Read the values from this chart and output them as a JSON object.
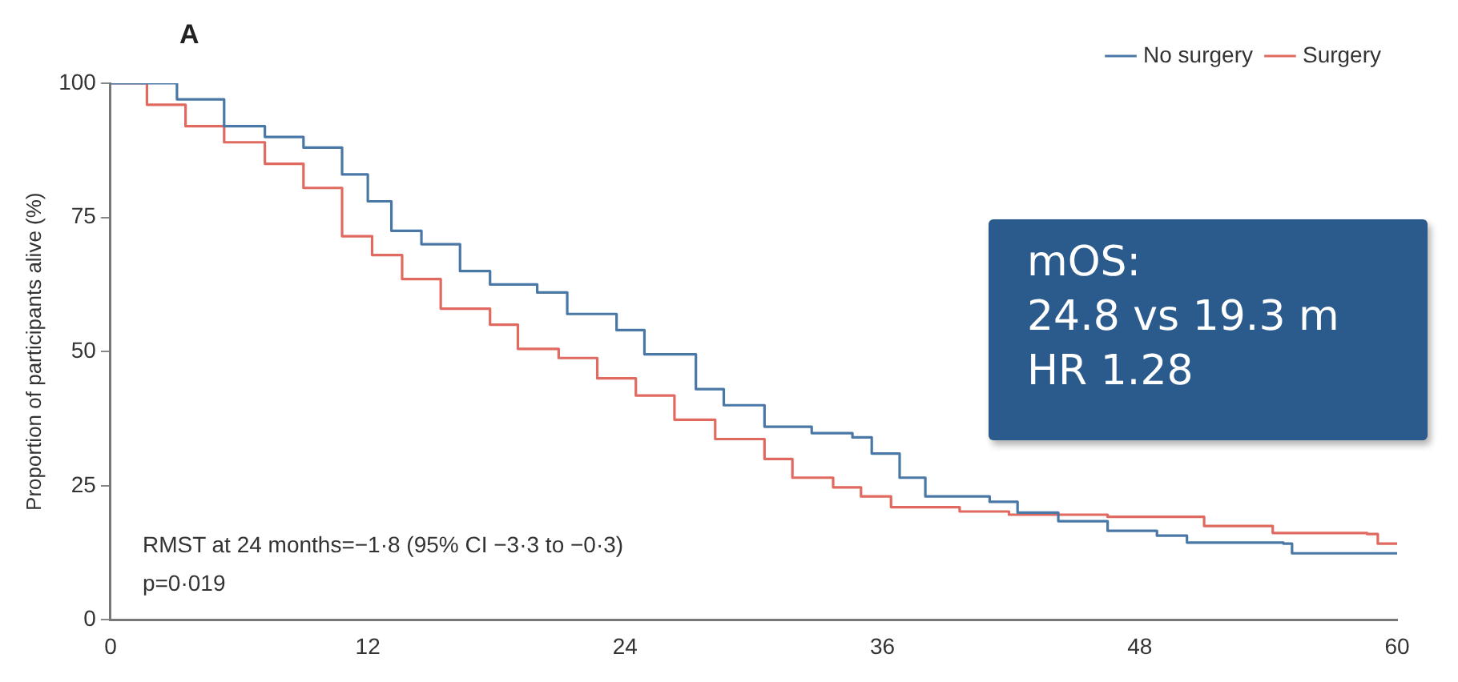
{
  "chart_data": {
    "type": "step",
    "title": "A",
    "ylabel": "Proportion of participants alive (%)",
    "xlim": [
      0,
      60
    ],
    "xticks": [
      0,
      12,
      24,
      36,
      48,
      60
    ],
    "ylim": [
      0,
      100
    ],
    "yticks": [
      0,
      25,
      50,
      75,
      100
    ],
    "grid": false,
    "legend": "top right",
    "marker": "none",
    "line_style": "solid",
    "annotations": [
      "RMST at 24 months=−1·8 (95% CI −3·3 to −0·3)",
      "p=0·019",
      "mOS:\n24.8 vs 19.3 m\nHR 1.28"
    ],
    "series": [
      {
        "name": "No surgery",
        "color": "#4a78a6",
        "x": [
          0,
          1.5,
          3.1,
          5.3,
          7.2,
          9,
          10.8,
          12,
          13.1,
          14.5,
          16.3,
          17.7,
          19.9,
          21.3,
          23.6,
          24.9,
          27.3,
          28.6,
          30.5,
          32.7,
          34.6,
          35.5,
          36.8,
          38,
          41,
          42.3,
          44.2,
          46.5,
          48.8,
          50.2,
          54.7,
          55.1,
          60
        ],
        "values": [
          100,
          100,
          97,
          92,
          90,
          88,
          83,
          78,
          72.5,
          70,
          65,
          62.5,
          61,
          57,
          54,
          49.5,
          43,
          40,
          36,
          34.8,
          34,
          31,
          26.5,
          23,
          22,
          20,
          18.4,
          16.6,
          15.7,
          14.4,
          14.2,
          12.4,
          12.4
        ]
      },
      {
        "name": "Surgery",
        "color": "#e06a60",
        "x": [
          0,
          1.7,
          3.5,
          5.3,
          7.2,
          9,
          10.8,
          12.2,
          13.6,
          15.4,
          17.7,
          19,
          20.9,
          22.7,
          24.5,
          26.3,
          28.2,
          30.5,
          31.8,
          33.7,
          35,
          36.4,
          39.6,
          41.9,
          46.5,
          51,
          54.2,
          58.6,
          59.1,
          60
        ],
        "values": [
          100,
          96,
          92,
          89,
          85,
          80.5,
          71.5,
          68,
          63.5,
          58,
          55,
          50.5,
          48.8,
          45,
          41.8,
          37.3,
          33.7,
          30,
          26.5,
          24.7,
          23,
          21,
          20.2,
          19.6,
          19.2,
          17.5,
          16.2,
          16,
          14.2,
          14.2
        ]
      }
    ]
  }
}
